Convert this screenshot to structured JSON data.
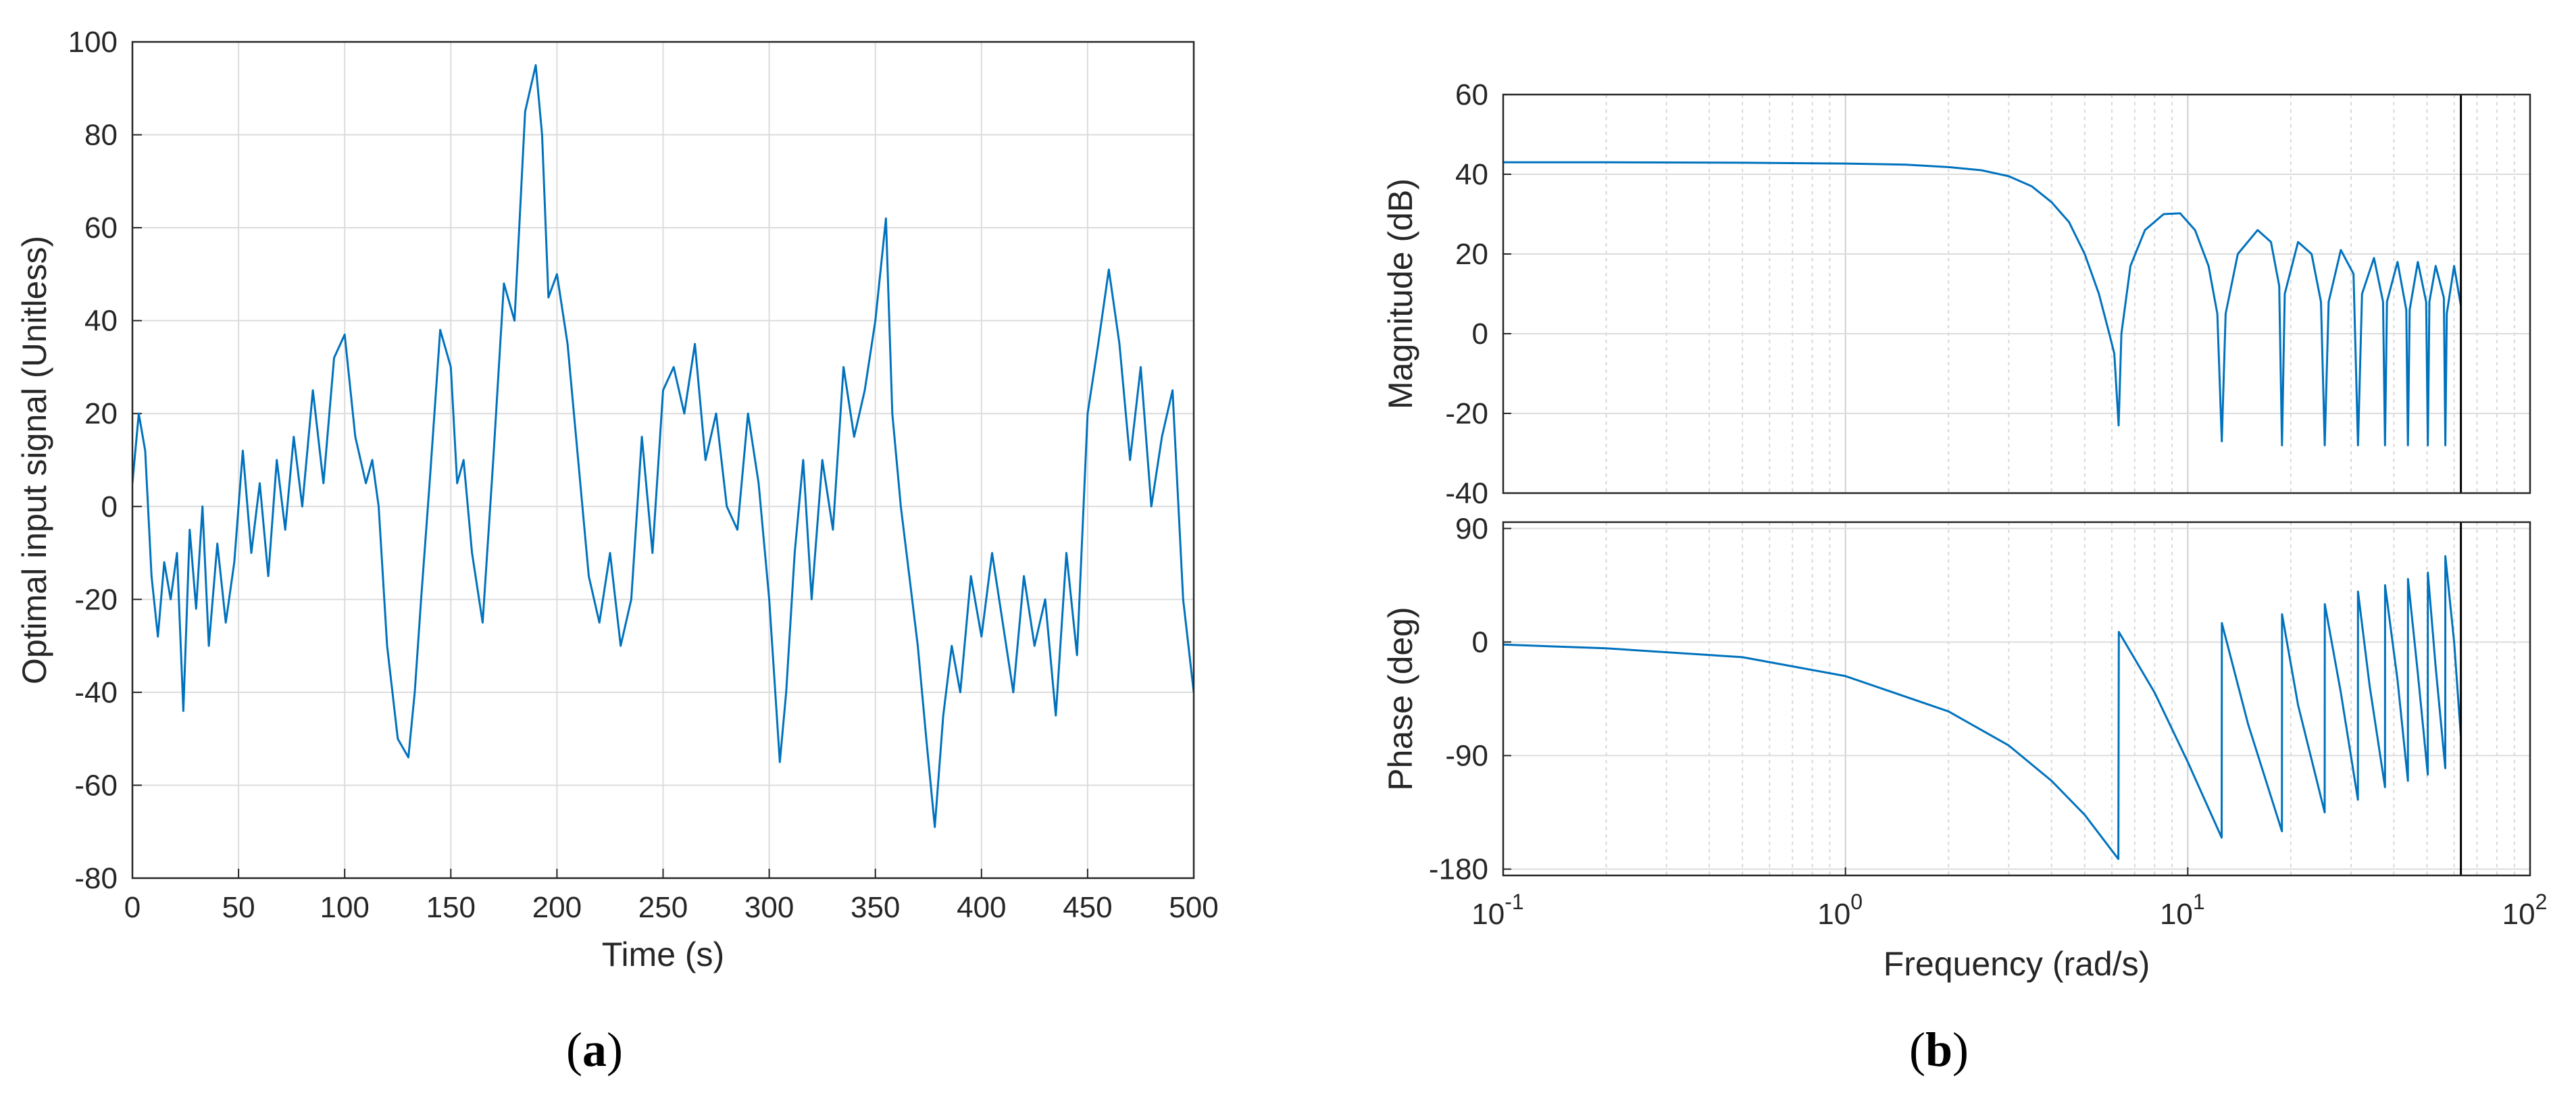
{
  "chart_data": [
    {
      "id": "a",
      "type": "line",
      "caption": "(a)",
      "caption_letter": "a",
      "xlabel": "Time (s)",
      "ylabel": "Optimal input signal (Unitless)",
      "xlim": [
        0,
        500
      ],
      "ylim": [
        -80,
        100
      ],
      "xticks": [
        0,
        50,
        100,
        150,
        200,
        250,
        300,
        350,
        400,
        450,
        500
      ],
      "yticks": [
        -80,
        -60,
        -40,
        -20,
        0,
        20,
        40,
        60,
        80,
        100
      ],
      "grid": true,
      "color": "#0072BD",
      "series": [
        {
          "x": [
            0,
            3,
            6,
            9,
            12,
            15,
            18,
            21,
            24,
            27,
            30,
            33,
            36,
            40,
            44,
            48,
            52,
            56,
            60,
            64,
            68,
            72,
            76,
            80,
            85,
            90,
            95,
            100,
            105,
            110,
            113,
            116,
            120,
            125,
            130,
            133,
            136,
            140,
            145,
            150,
            153,
            156,
            160,
            165,
            170,
            175,
            180,
            185,
            190,
            193,
            196,
            200,
            205,
            210,
            215,
            220,
            225,
            230,
            235,
            240,
            245,
            250,
            255,
            260,
            265,
            270,
            275,
            280,
            285,
            290,
            295,
            300,
            305,
            308,
            312,
            316,
            320,
            325,
            330,
            335,
            340,
            345,
            350,
            355,
            358,
            362,
            366,
            370,
            374,
            378,
            382,
            386,
            390,
            395,
            400,
            405,
            410,
            415,
            420,
            425,
            430,
            435,
            440,
            445,
            450,
            455,
            460,
            465,
            470,
            475,
            480,
            485,
            490,
            495,
            500
          ],
          "y": [
            5,
            20,
            12,
            -15,
            -28,
            -12,
            -20,
            -10,
            -44,
            -5,
            -22,
            0,
            -30,
            -8,
            -25,
            -12,
            12,
            -10,
            5,
            -15,
            10,
            -5,
            15,
            0,
            25,
            5,
            32,
            37,
            15,
            5,
            10,
            0,
            -30,
            -50,
            -54,
            -40,
            -20,
            5,
            38,
            30,
            5,
            10,
            -10,
            -25,
            10,
            48,
            40,
            85,
            95,
            80,
            45,
            50,
            35,
            10,
            -15,
            -25,
            -10,
            -30,
            -20,
            15,
            -10,
            25,
            30,
            20,
            35,
            10,
            20,
            0,
            -5,
            20,
            5,
            -20,
            -55,
            -40,
            -10,
            10,
            -20,
            10,
            -5,
            30,
            15,
            25,
            40,
            62,
            20,
            0,
            -15,
            -30,
            -50,
            -69,
            -45,
            -30,
            -40,
            -15,
            -28,
            -10,
            -25,
            -40,
            -15,
            -30,
            -20,
            -45,
            -10,
            -32,
            20,
            35,
            51,
            35,
            10,
            30,
            0,
            15,
            25,
            -20,
            -40
          ]
        }
      ]
    },
    {
      "id": "b",
      "type": "line",
      "caption": "(b)",
      "caption_letter": "b",
      "xlabel": "Frequency  (rad/s)",
      "xscale": "log",
      "xlim": [
        0.1,
        100
      ],
      "xtick_base": "10",
      "xtick_exponents": [
        "-1",
        "0",
        "1",
        "2"
      ],
      "color": "#0072BD",
      "marker_line_x": 62.8,
      "magnitude": {
        "ylabel": "Magnitude (dB)",
        "ylim": [
          -40,
          60
        ],
        "yticks": [
          -40,
          -20,
          0,
          20,
          40,
          60
        ],
        "grid": true,
        "x": [
          0.1,
          0.2,
          0.5,
          1,
          1.5,
          2,
          2.5,
          3,
          3.5,
          4,
          4.5,
          5,
          5.5,
          5.9,
          6.1,
          6.28,
          6.4,
          6.8,
          7.5,
          8.5,
          9.5,
          10.5,
          11.5,
          12.2,
          12.57,
          12.9,
          14,
          16,
          17.5,
          18.5,
          18.85,
          19.2,
          21,
          23,
          24.5,
          25.13,
          25.8,
          28,
          30.5,
          31.42,
          32.3,
          35,
          37.2,
          37.7,
          38.2,
          41,
          43.5,
          43.98,
          44.5,
          47,
          49.7,
          50.27,
          50.8,
          53,
          56,
          56.55,
          57.1,
          60,
          62.8
        ],
        "y": [
          43,
          43,
          42.9,
          42.7,
          42.4,
          41.8,
          41,
          39.5,
          37,
          33,
          28,
          20,
          10,
          0,
          -5,
          -23,
          0,
          17,
          26,
          30,
          30.2,
          26,
          17,
          5,
          -27,
          5,
          20,
          26,
          23,
          12,
          -28,
          10,
          23,
          20,
          8,
          -28,
          8,
          21,
          15,
          -28,
          10,
          19,
          8,
          -28,
          8,
          18,
          6,
          -28,
          6,
          18,
          8,
          -28,
          8,
          17,
          9,
          -28,
          5,
          17,
          7
        ]
      },
      "phase": {
        "ylabel": "Phase (deg)",
        "ylim": [
          -185,
          95
        ],
        "yticks": [
          -180,
          -90,
          0,
          90
        ],
        "grid": true,
        "x": [
          0.1,
          0.2,
          0.5,
          1,
          2,
          3,
          4,
          5,
          5.8,
          6.27,
          6.29,
          8,
          10,
          12.56,
          12.58,
          15,
          18.84,
          18.86,
          21,
          25.12,
          25.14,
          28,
          31.41,
          31.43,
          34,
          37.69,
          37.71,
          41,
          43.97,
          43.99,
          47,
          50.26,
          50.28,
          53,
          56.54,
          56.56,
          60,
          62.8
        ],
        "y": [
          -2,
          -5,
          -12,
          -27,
          -55,
          -82,
          -110,
          -137,
          -160,
          -172,
          8,
          -40,
          -95,
          -155,
          15,
          -65,
          -150,
          22,
          -50,
          -135,
          30,
          -40,
          -125,
          40,
          -35,
          -115,
          45,
          -30,
          -110,
          50,
          -25,
          -105,
          55,
          -20,
          -100,
          68,
          0,
          -75
        ]
      }
    }
  ]
}
